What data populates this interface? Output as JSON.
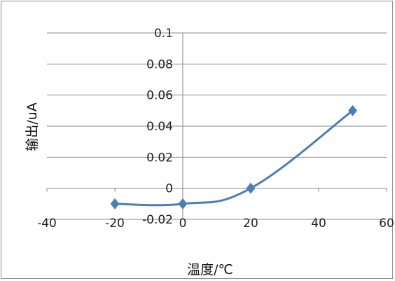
{
  "chart_data": {
    "type": "line",
    "title": "",
    "xlabel": "温度/℃",
    "ylabel": "输出/uA",
    "xlim": [
      -40,
      60
    ],
    "ylim": [
      -0.02,
      0.1
    ],
    "x_ticks": [
      -40,
      -20,
      0,
      20,
      40,
      60
    ],
    "y_ticks": [
      -0.02,
      0,
      0.02,
      0.04,
      0.06,
      0.08,
      0.1
    ],
    "x_tick_labels": [
      "-40",
      "-20",
      "0",
      "20",
      "40",
      "60"
    ],
    "y_tick_labels": [
      "-0.02",
      "0",
      "0.02",
      "0.04",
      "0.06",
      "0.08",
      "0.1"
    ],
    "grid": "horizontal",
    "smooth": true,
    "marker": "diamond",
    "series": [
      {
        "color": "#4a7ebb",
        "x": [
          -20,
          0,
          20,
          50
        ],
        "y": [
          -0.01,
          -0.01,
          0,
          0.05
        ]
      }
    ]
  }
}
